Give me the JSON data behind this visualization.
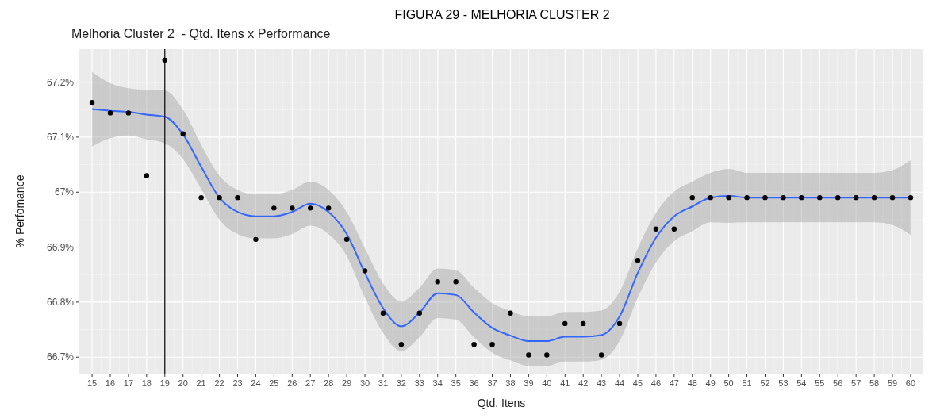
{
  "chart_data": {
    "type": "scatter",
    "title": "FIGURA 29 - MELHORIA CLUSTER 2",
    "subtitle": "Melhoria Cluster 2  - Qtd. Itens x Performance",
    "xlabel": "Qtd. Itens",
    "ylabel": "% Perfomance",
    "xlim": [
      14.3,
      60.7
    ],
    "xticks": [
      15,
      16,
      17,
      18,
      19,
      20,
      21,
      22,
      23,
      24,
      25,
      26,
      27,
      28,
      29,
      30,
      31,
      32,
      33,
      34,
      35,
      36,
      37,
      38,
      39,
      40,
      41,
      42,
      43,
      44,
      45,
      46,
      47,
      48,
      49,
      50,
      51,
      52,
      53,
      54,
      55,
      56,
      57,
      58,
      59,
      60
    ],
    "ylim": [
      66.67,
      67.26
    ],
    "yticks": [
      {
        "value": 66.7,
        "label": "66.7%"
      },
      {
        "value": 66.8,
        "label": "66.8%"
      },
      {
        "value": 66.9,
        "label": "66.9%"
      },
      {
        "value": 67,
        "label": "67%"
      },
      {
        "value": 67.1,
        "label": "67.1%"
      },
      {
        "value": 67.2,
        "label": "67.2%"
      }
    ],
    "grid": true,
    "ref_lines": [
      {
        "axis": "x",
        "value": 19,
        "color": "#000000"
      }
    ],
    "series": [
      {
        "type": "line",
        "color": "#3366ff",
        "x": [
          15,
          16,
          17,
          18,
          19,
          20,
          21,
          22,
          23,
          24,
          25,
          26,
          27,
          28,
          29,
          30,
          31,
          32,
          33,
          34,
          35,
          36,
          37,
          38,
          39,
          40,
          41,
          42,
          43,
          44,
          45,
          46,
          47,
          48,
          49,
          50,
          51,
          52,
          53,
          54,
          55,
          56,
          57,
          58,
          59,
          60
        ],
        "values": [
          67.151,
          67.148,
          67.146,
          67.141,
          67.137,
          67.105,
          67.046,
          66.99,
          66.964,
          66.956,
          66.956,
          66.964,
          66.979,
          66.964,
          66.924,
          66.853,
          66.789,
          66.756,
          66.781,
          66.816,
          66.813,
          66.781,
          66.753,
          66.739,
          66.729,
          66.729,
          66.737,
          66.737,
          66.74,
          66.774,
          66.853,
          66.917,
          66.956,
          66.974,
          66.99,
          66.993,
          66.99,
          66.99,
          66.99,
          66.99,
          66.99,
          66.99,
          66.99,
          66.99,
          66.99,
          66.99
        ],
        "lower": [
          67.083,
          67.098,
          67.103,
          67.096,
          67.089,
          67.06,
          67.006,
          66.95,
          66.924,
          66.916,
          66.916,
          66.924,
          66.939,
          66.924,
          66.884,
          66.808,
          66.744,
          66.711,
          66.736,
          66.771,
          66.768,
          66.736,
          66.708,
          66.694,
          66.684,
          66.684,
          66.692,
          66.692,
          66.695,
          66.729,
          66.808,
          66.872,
          66.911,
          66.929,
          66.945,
          66.944,
          66.945,
          66.945,
          66.945,
          66.945,
          66.945,
          66.945,
          66.945,
          66.945,
          66.94,
          66.922
        ],
        "upper": [
          67.219,
          67.198,
          67.189,
          67.186,
          67.185,
          67.15,
          67.086,
          67.03,
          67.004,
          66.996,
          66.996,
          67.004,
          67.019,
          67.004,
          66.964,
          66.898,
          66.834,
          66.801,
          66.826,
          66.861,
          66.858,
          66.826,
          66.798,
          66.784,
          66.774,
          66.774,
          66.782,
          66.782,
          66.785,
          66.819,
          66.898,
          66.962,
          67.001,
          67.019,
          67.035,
          67.042,
          67.035,
          67.035,
          67.035,
          67.035,
          67.035,
          67.035,
          67.035,
          67.035,
          67.04,
          67.058
        ]
      },
      {
        "marker": "circle",
        "color": "#000000",
        "x": [
          15,
          16,
          17,
          18,
          19,
          20,
          21,
          22,
          23,
          24,
          25,
          26,
          27,
          28,
          29,
          30,
          31,
          32,
          33,
          34,
          35,
          36,
          37,
          38,
          39,
          40,
          41,
          42,
          43,
          44,
          45,
          46,
          47,
          48,
          49,
          50,
          51,
          52,
          53,
          54,
          55,
          56,
          57,
          58,
          59,
          60
        ],
        "values": [
          67.163,
          67.144,
          67.144,
          67.03,
          67.24,
          67.106,
          66.99,
          66.99,
          66.99,
          66.914,
          66.971,
          66.971,
          66.971,
          66.971,
          66.914,
          66.857,
          66.78,
          66.723,
          66.78,
          66.837,
          66.837,
          66.723,
          66.723,
          66.78,
          66.704,
          66.704,
          66.761,
          66.761,
          66.704,
          66.761,
          66.876,
          66.933,
          66.933,
          66.99,
          66.99,
          66.99,
          66.99,
          66.99,
          66.99,
          66.99,
          66.99,
          66.99,
          66.99,
          66.99,
          66.99,
          66.99
        ]
      }
    ]
  }
}
